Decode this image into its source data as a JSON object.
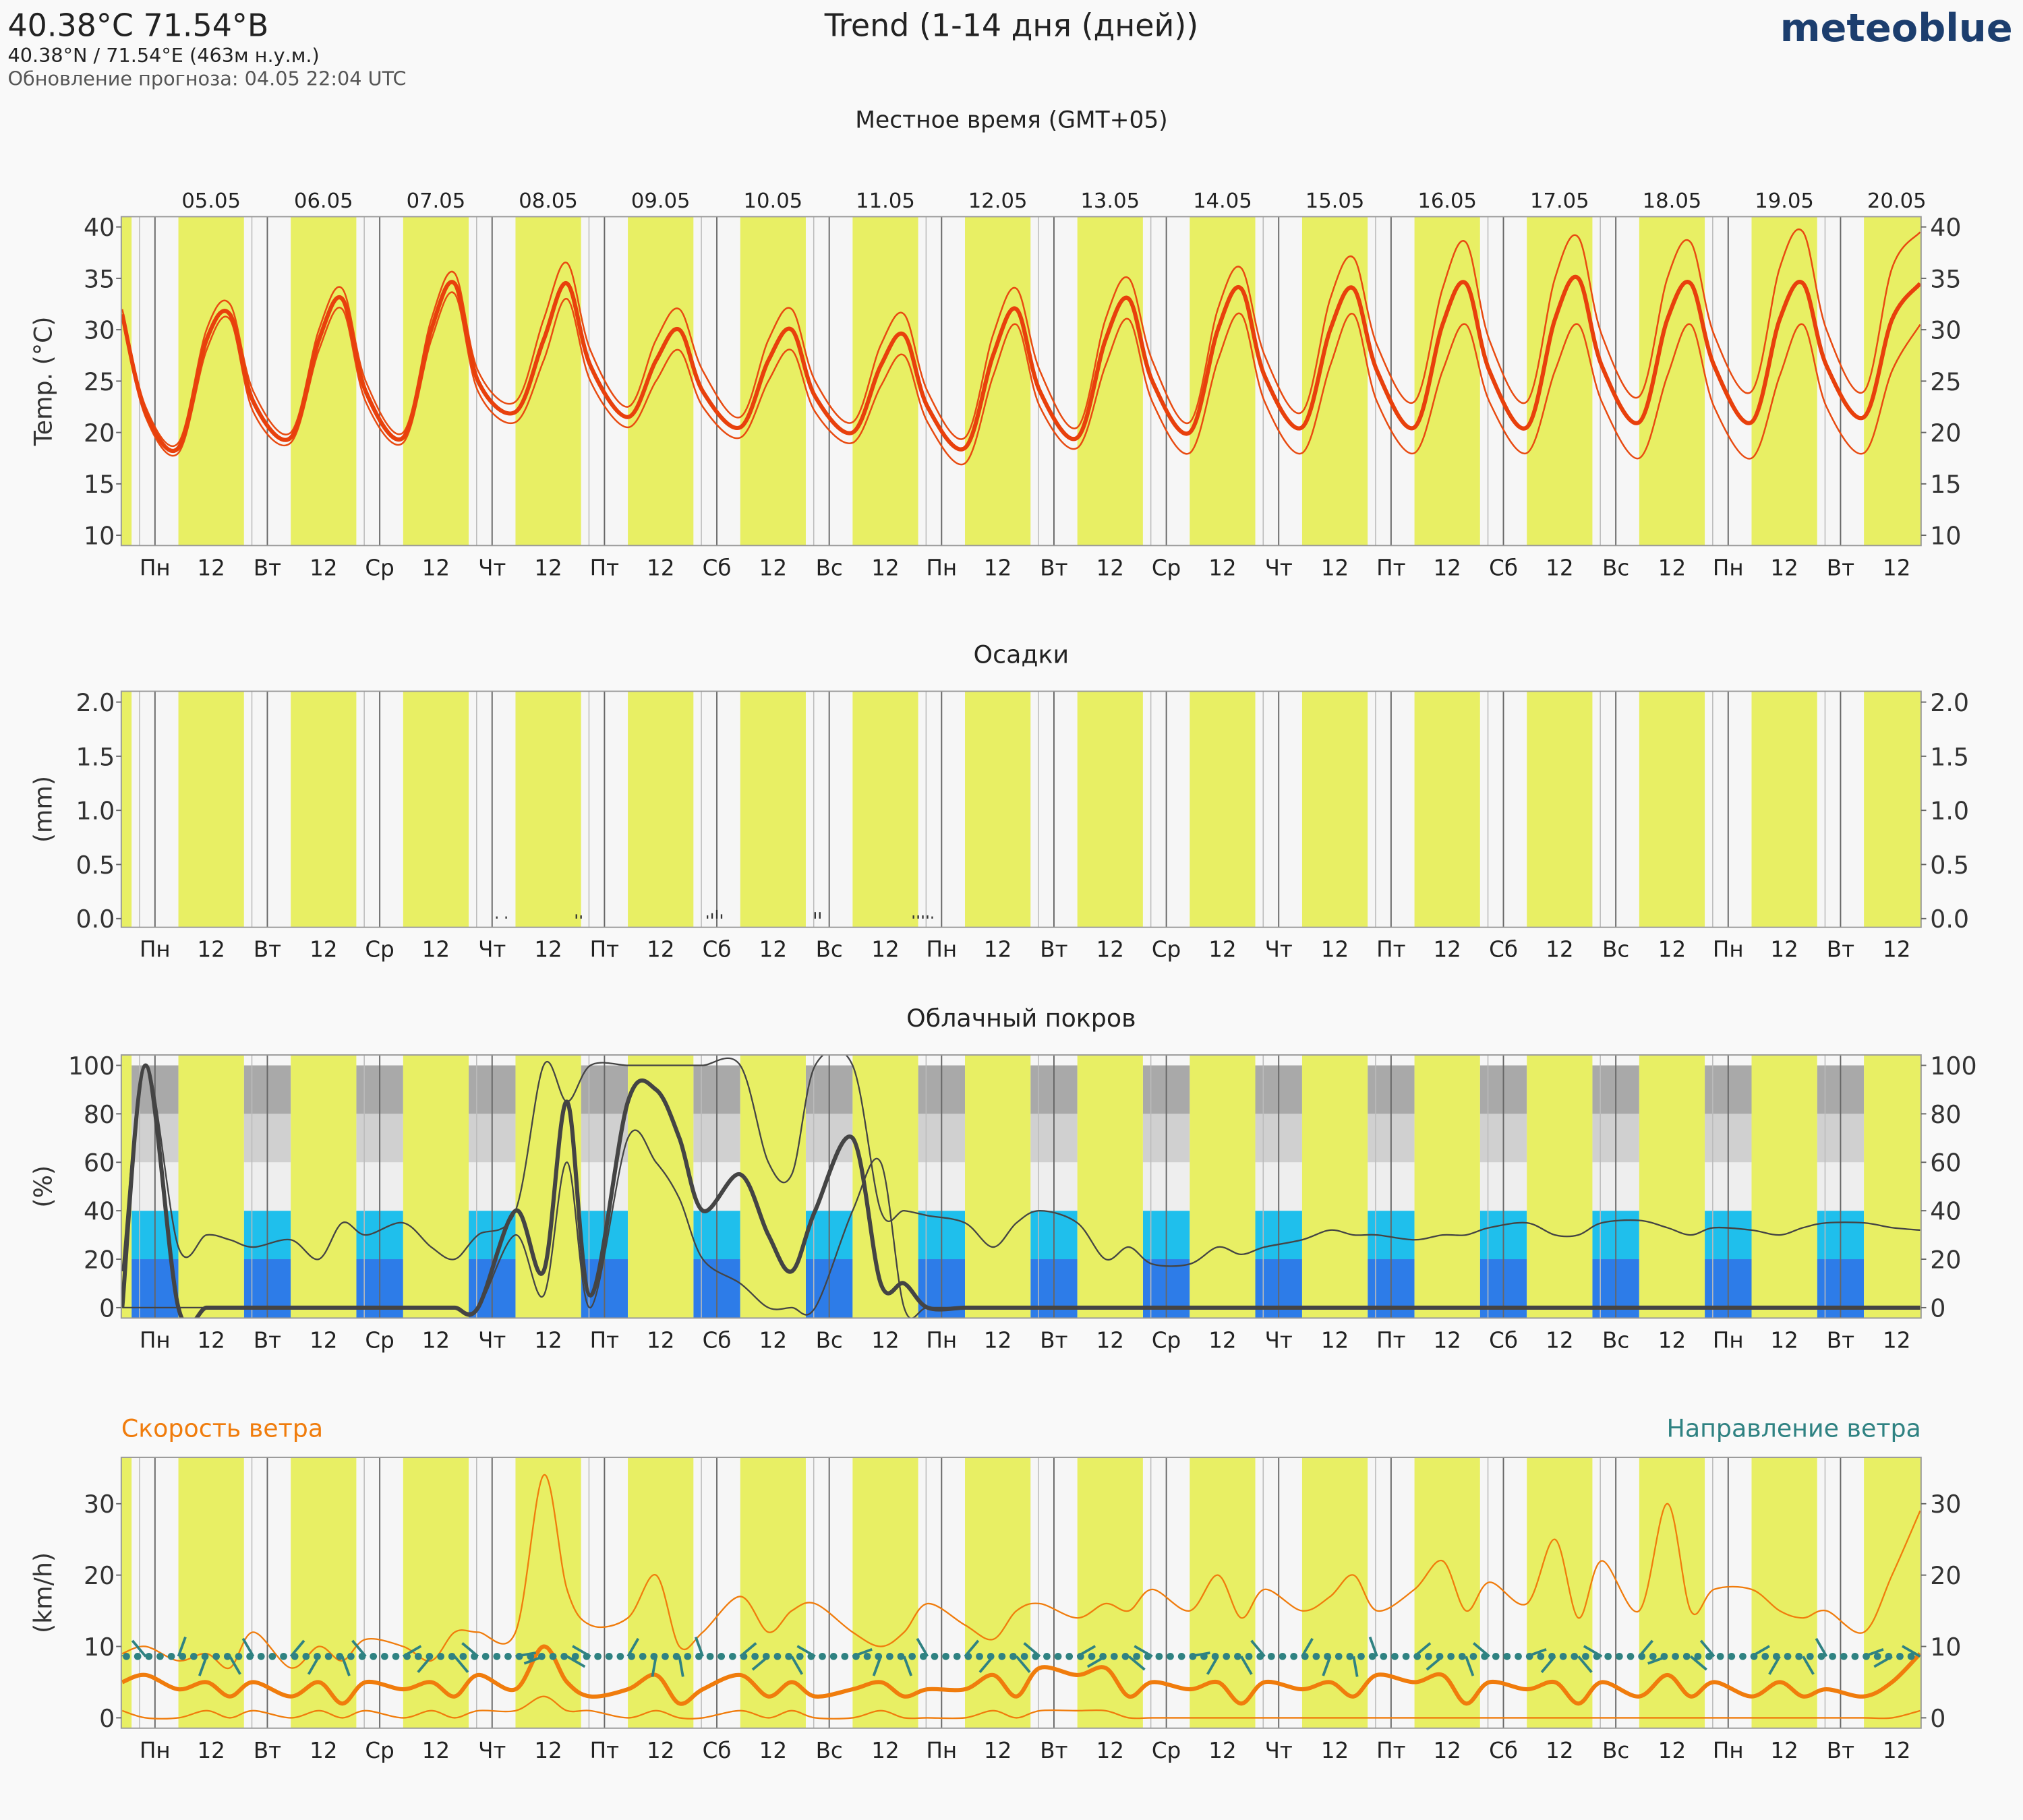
{
  "header": {
    "location": "40.38°C 71.54°В",
    "coords": "40.38°N / 71.54°E (463м н.у.м.)",
    "update": "Обновление прогноза: 04.05 22:04 UTC",
    "title": "Trend (1-14 дня (дней))",
    "brand": "meteoblue",
    "timezone": "Местное время (GMT+05)"
  },
  "time_axis": {
    "xlim": [
      -7.2,
      377.2
    ],
    "xticks": [
      {
        "value": 0,
        "label": "Пн"
      },
      {
        "value": 12,
        "label": "12"
      },
      {
        "value": 24,
        "label": "Вт"
      },
      {
        "value": 36,
        "label": "12"
      },
      {
        "value": 48,
        "label": "Ср"
      },
      {
        "value": 60,
        "label": "12"
      },
      {
        "value": 72,
        "label": "Чт"
      },
      {
        "value": 84,
        "label": "12"
      },
      {
        "value": 96,
        "label": "Пт"
      },
      {
        "value": 108,
        "label": "12"
      },
      {
        "value": 120,
        "label": "Сб"
      },
      {
        "value": 132,
        "label": "12"
      },
      {
        "value": 144,
        "label": "Вс"
      },
      {
        "value": 156,
        "label": "12"
      },
      {
        "value": 168,
        "label": "Пн"
      },
      {
        "value": 180,
        "label": "12"
      },
      {
        "value": 192,
        "label": "Вт"
      },
      {
        "value": 204,
        "label": "12"
      },
      {
        "value": 216,
        "label": "Ср"
      },
      {
        "value": 228,
        "label": "12"
      },
      {
        "value": 240,
        "label": "Чт"
      },
      {
        "value": 252,
        "label": "12"
      },
      {
        "value": 264,
        "label": "Пт"
      },
      {
        "value": 276,
        "label": "12"
      },
      {
        "value": 288,
        "label": "Сб"
      },
      {
        "value": 300,
        "label": "12"
      },
      {
        "value": 312,
        "label": "Вс"
      },
      {
        "value": 324,
        "label": "12"
      },
      {
        "value": 336,
        "label": "Пн"
      },
      {
        "value": 348,
        "label": "12"
      },
      {
        "value": 360,
        "label": "Вт"
      },
      {
        "value": 372,
        "label": "12"
      }
    ],
    "date_ticks": [
      {
        "value": 12,
        "label": "05.05"
      },
      {
        "value": 36,
        "label": "06.05"
      },
      {
        "value": 60,
        "label": "07.05"
      },
      {
        "value": 84,
        "label": "08.05"
      },
      {
        "value": 108,
        "label": "09.05"
      },
      {
        "value": 132,
        "label": "10.05"
      },
      {
        "value": 156,
        "label": "11.05"
      },
      {
        "value": 180,
        "label": "12.05"
      },
      {
        "value": 204,
        "label": "13.05"
      },
      {
        "value": 228,
        "label": "14.05"
      },
      {
        "value": 252,
        "label": "15.05"
      },
      {
        "value": 276,
        "label": "16.05"
      },
      {
        "value": 300,
        "label": "17.05"
      },
      {
        "value": 324,
        "label": "18.05"
      },
      {
        "value": 348,
        "label": "19.05"
      },
      {
        "value": 372,
        "label": "20.05"
      }
    ],
    "daylight": [
      [
        -19,
        -5
      ],
      [
        5,
        19
      ],
      [
        29,
        43
      ],
      [
        53,
        67
      ],
      [
        77,
        91
      ],
      [
        101,
        115
      ],
      [
        125,
        139
      ],
      [
        149,
        163
      ],
      [
        173,
        187
      ],
      [
        197,
        211
      ],
      [
        221,
        235
      ],
      [
        245,
        259
      ],
      [
        269,
        283
      ],
      [
        293,
        307
      ],
      [
        317,
        331
      ],
      [
        341,
        355
      ],
      [
        365,
        379
      ]
    ],
    "daylight_color": "#e8ef64"
  },
  "chart_data": [
    {
      "type": "line",
      "ylabel": "Temp. (°C)",
      "ylim": [
        9,
        41
      ],
      "yticks": [
        10,
        15,
        20,
        25,
        30,
        35,
        40
      ],
      "x": [
        -7,
        -2,
        5,
        11,
        16,
        21,
        29,
        35,
        40,
        45,
        53,
        59,
        64,
        69,
        77,
        83,
        88,
        93,
        101,
        107,
        112,
        117,
        125,
        131,
        136,
        141,
        149,
        155,
        160,
        165,
        173,
        179,
        184,
        189,
        197,
        203,
        208,
        213,
        221,
        227,
        232,
        237,
        245,
        251,
        256,
        261,
        269,
        275,
        280,
        285,
        293,
        299,
        304,
        309,
        317,
        323,
        328,
        333,
        341,
        347,
        352,
        357,
        365,
        371,
        377
      ],
      "series": [
        {
          "color": "#e84a10",
          "width": 1.3,
          "values": [
            32,
            22.5,
            19,
            30,
            32.5,
            24,
            20,
            30,
            34,
            25,
            20,
            31,
            35.5,
            26,
            23,
            31,
            36.5,
            28,
            22.5,
            29,
            32,
            26,
            21.5,
            29,
            32,
            25,
            21,
            28.5,
            31.5,
            24,
            19.5,
            29.5,
            34,
            26,
            20.5,
            31,
            35,
            27,
            21,
            32,
            36,
            27.5,
            22,
            33,
            37,
            28.5,
            23,
            34,
            38.5,
            29,
            23,
            35,
            39,
            29.5,
            23.5,
            35,
            38.5,
            29.5,
            24,
            36,
            39.5,
            30,
            24,
            36,
            39.5
          ]
        },
        {
          "color": "#e84a10",
          "width": 1.3,
          "values": [
            31,
            21.5,
            18,
            28,
            31,
            22,
            19,
            28,
            32,
            23,
            19,
            29,
            33.5,
            24,
            21,
            27,
            33,
            25,
            20.5,
            25,
            28,
            22.5,
            19.5,
            25,
            28,
            22,
            19,
            24.5,
            27.5,
            21,
            17,
            25.5,
            30.5,
            22.5,
            18.5,
            26.5,
            31,
            23,
            18,
            27,
            31.5,
            23,
            18,
            26.5,
            31.5,
            23,
            18,
            26,
            30.5,
            23,
            18,
            26,
            30.5,
            23,
            17.5,
            25.5,
            30.5,
            22.5,
            17.5,
            25.5,
            30.5,
            22.5,
            18,
            26,
            30.5
          ]
        },
        {
          "color": "#e8400c",
          "width": 3.2,
          "values": [
            31.5,
            22,
            18.5,
            29,
            31.5,
            23,
            19.5,
            29,
            33,
            24,
            19.5,
            30,
            34.5,
            25,
            22,
            29,
            34.5,
            26.5,
            21.5,
            27,
            30,
            24,
            20.5,
            27,
            30,
            23.5,
            20,
            26.5,
            29.5,
            22.5,
            18.5,
            27.5,
            32,
            24,
            19.5,
            29,
            33,
            25,
            20,
            30,
            34,
            25.5,
            20.5,
            30,
            34,
            26,
            20.5,
            30.5,
            34.5,
            26,
            20.5,
            31,
            35,
            26.5,
            21,
            31,
            34.5,
            26.5,
            21,
            31,
            34.5,
            26.5,
            21.5,
            31,
            34.5
          ]
        }
      ]
    },
    {
      "type": "bar",
      "title": "Осадки",
      "ylabel": "(mm)",
      "ylim": [
        -0.08,
        2.1
      ],
      "yticks": [
        {
          "value": 0,
          "label": "0.0"
        },
        0.5,
        {
          "value": 1,
          "label": "1.0"
        },
        1.5,
        {
          "value": 2,
          "label": "2.0"
        }
      ],
      "color": "#333333",
      "x": [
        73,
        75,
        90,
        91,
        118,
        119,
        120,
        121,
        141,
        142,
        162,
        163,
        164,
        165,
        166
      ],
      "values": [
        0.02,
        0.02,
        0.04,
        0.03,
        0.03,
        0.05,
        0.08,
        0.04,
        0.06,
        0.06,
        0.03,
        0.03,
        0.03,
        0.03,
        0.02
      ]
    },
    {
      "type": "line",
      "title": "Облачный покров",
      "ylabel": "(%)",
      "ylim": [
        -4.3,
        104.3
      ],
      "yticks": [
        0,
        20,
        40,
        60,
        80,
        100
      ],
      "background_scale": true,
      "x": [
        -7,
        -2,
        5,
        11,
        16,
        21,
        29,
        35,
        40,
        45,
        53,
        59,
        64,
        69,
        77,
        83,
        88,
        93,
        101,
        107,
        112,
        117,
        125,
        131,
        136,
        141,
        149,
        155,
        160,
        165,
        173,
        179,
        184,
        189,
        197,
        203,
        208,
        213,
        221,
        227,
        232,
        237,
        245,
        251,
        256,
        261,
        269,
        275,
        280,
        285,
        293,
        299,
        304,
        309,
        317,
        323,
        328,
        333,
        341,
        347,
        352,
        357,
        365,
        371,
        377
      ],
      "series": [
        {
          "color": "#444444",
          "width": 1.2,
          "values": [
            15,
            100,
            25,
            30,
            28,
            25,
            28,
            20,
            35,
            30,
            35,
            25,
            20,
            30,
            40,
            100,
            85,
            100,
            100,
            100,
            100,
            100,
            100,
            60,
            55,
            100,
            100,
            40,
            40,
            38,
            35,
            25,
            35,
            40,
            35,
            20,
            25,
            18,
            18,
            25,
            22,
            25,
            28,
            32,
            30,
            30,
            28,
            30,
            30,
            33,
            35,
            30,
            30,
            35,
            36,
            33,
            30,
            33,
            32,
            30,
            33,
            35,
            35,
            33,
            32
          ]
        },
        {
          "color": "#444444",
          "width": 1.2,
          "values": [
            0,
            0,
            0,
            0,
            0,
            0,
            0,
            0,
            0,
            0,
            0,
            0,
            0,
            0,
            30,
            5,
            60,
            0,
            70,
            60,
            45,
            20,
            10,
            0,
            0,
            0,
            40,
            60,
            0,
            0,
            0,
            0,
            0,
            0,
            0,
            0,
            0,
            0,
            0,
            0,
            0,
            0,
            0,
            0,
            0,
            0,
            0,
            0,
            0,
            0,
            0,
            0,
            0,
            0,
            0,
            0,
            0,
            0,
            0,
            0,
            0,
            0,
            0,
            0,
            0
          ]
        },
        {
          "color": "#444444",
          "width": 3.2,
          "values": [
            0,
            100,
            0,
            0,
            0,
            0,
            0,
            0,
            0,
            0,
            0,
            0,
            0,
            0,
            40,
            15,
            85,
            5,
            85,
            90,
            70,
            40,
            55,
            30,
            15,
            40,
            70,
            10,
            10,
            0,
            0,
            0,
            0,
            0,
            0,
            0,
            0,
            0,
            0,
            0,
            0,
            0,
            0,
            0,
            0,
            0,
            0,
            0,
            0,
            0,
            0,
            0,
            0,
            0,
            0,
            0,
            0,
            0,
            0,
            0,
            0,
            0,
            0,
            0,
            0
          ]
        }
      ]
    },
    {
      "type": "line",
      "title": "Скорость ветра",
      "title_color": "#f07c0c",
      "ylabel": "(km/h)",
      "ylim": [
        -1.45,
        36.5
      ],
      "yticks": [
        0,
        10,
        20,
        30
      ],
      "x": [
        -7,
        -2,
        5,
        11,
        16,
        21,
        29,
        35,
        40,
        45,
        53,
        59,
        64,
        69,
        77,
        83,
        88,
        93,
        101,
        107,
        112,
        117,
        125,
        131,
        136,
        141,
        149,
        155,
        160,
        165,
        173,
        179,
        184,
        189,
        197,
        203,
        208,
        213,
        221,
        227,
        232,
        237,
        245,
        251,
        256,
        261,
        269,
        275,
        280,
        285,
        293,
        299,
        304,
        309,
        317,
        323,
        328,
        333,
        341,
        347,
        352,
        357,
        365,
        371,
        377
      ],
      "series": [
        {
          "color": "#f07c0c",
          "width": 1.2,
          "values": [
            9,
            10,
            8,
            9,
            7,
            12,
            7,
            10,
            8,
            11,
            10,
            8,
            12,
            12,
            12,
            34,
            18,
            13,
            14,
            20,
            10,
            12,
            17,
            12,
            15,
            16,
            12,
            10,
            12,
            16,
            13,
            11,
            15,
            16,
            14,
            16,
            15,
            18,
            15,
            20,
            14,
            18,
            15,
            17,
            20,
            15,
            18,
            22,
            15,
            19,
            16,
            25,
            14,
            22,
            15,
            30,
            15,
            18,
            18,
            15,
            14,
            15,
            12,
            20,
            29
          ]
        },
        {
          "color": "#f07c0c",
          "width": 1.2,
          "values": [
            1,
            0,
            0,
            1,
            0,
            1,
            0,
            1,
            0,
            1,
            0,
            1,
            0,
            1,
            1,
            3,
            1,
            1,
            0,
            1,
            0,
            0,
            1,
            0,
            1,
            0,
            0,
            1,
            0,
            0,
            0,
            1,
            0,
            1,
            1,
            1,
            0,
            0,
            0,
            0,
            0,
            0,
            0,
            0,
            0,
            0,
            0,
            0,
            0,
            0,
            0,
            0,
            0,
            0,
            0,
            0,
            0,
            0,
            0,
            0,
            0,
            0,
            0,
            0,
            1
          ]
        },
        {
          "color": "#f07c0c",
          "width": 3.2,
          "values": [
            5,
            6,
            4,
            5,
            3,
            5,
            3,
            5,
            2,
            5,
            4,
            5,
            3,
            6,
            4,
            10,
            5,
            3,
            4,
            6,
            2,
            4,
            6,
            3,
            5,
            3,
            4,
            5,
            3,
            4,
            4,
            6,
            3,
            7,
            6,
            7,
            3,
            5,
            4,
            5,
            2,
            5,
            4,
            5,
            3,
            6,
            5,
            6,
            2,
            5,
            4,
            5,
            2,
            5,
            3,
            6,
            3,
            5,
            3,
            5,
            3,
            4,
            3,
            5,
            9
          ]
        }
      ],
      "direction": {
        "name": "Направление ветра",
        "color": "#2f8282",
        "values": [
          300,
          320,
          20,
          200,
          150,
          330,
          40,
          210,
          160,
          320,
          60,
          220,
          140,
          310,
          80,
          250,
          120,
          300,
          30,
          190,
          170,
          340,
          50,
          230,
          150,
          300,
          70,
          200,
          160,
          330,
          40,
          220,
          140,
          310,
          60,
          240,
          130,
          300,
          80,
          210,
          150,
          320,
          30,
          200,
          170,
          340,
          50,
          230,
          160,
          310,
          70,
          220,
          140,
          300,
          40,
          250,
          130,
          320,
          60,
          210,
          150,
          330,
          70,
          240,
          300
        ]
      }
    }
  ]
}
